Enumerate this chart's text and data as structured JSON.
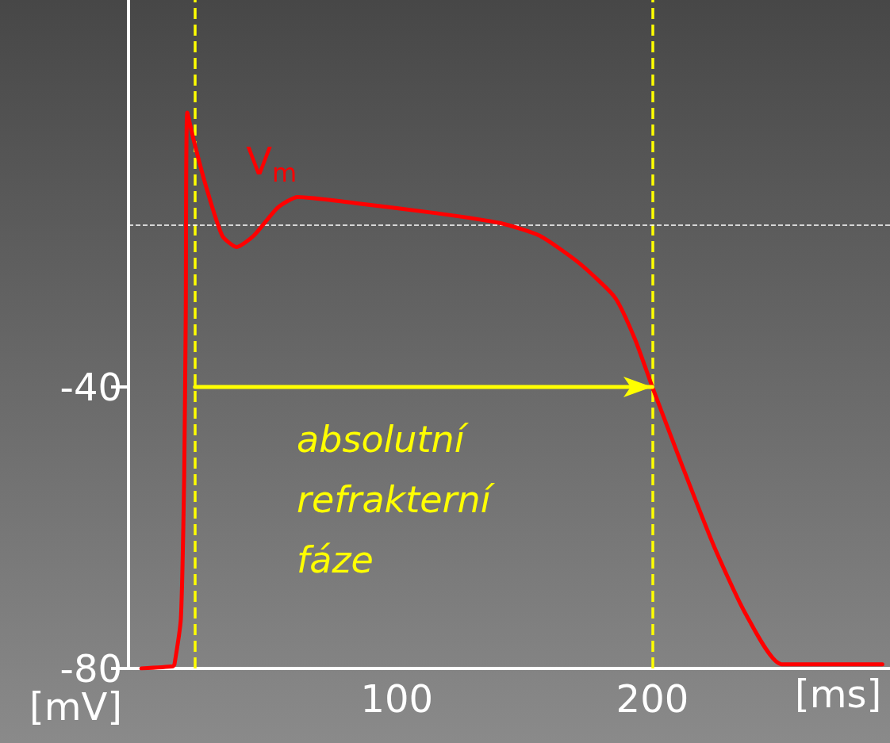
{
  "chart_data": {
    "type": "line",
    "xlabel": "[ms]",
    "ylabel": "[mV]",
    "xlim": [
      -5,
      293
    ],
    "ylim": [
      -80,
      15
    ],
    "xticks": [
      100,
      200
    ],
    "yticks": [
      -80,
      -40
    ],
    "series": [
      {
        "name": "V$_{m}$",
        "color": "#ff0000",
        "x": [
          0,
          12.4,
          13,
          15.5,
          16.8,
          17.4,
          18,
          20.5,
          25.5,
          31.7,
          37.3,
          44,
          53.4,
          61.2,
          84.5,
          115.5,
          140.4,
          155.9,
          171.4,
          185.4,
          193.2,
          200,
          211.8,
          224.2,
          236.6,
          250.6,
          290
        ],
        "values": [
          -80,
          -79.7,
          -79.4,
          -72.9,
          -52.5,
          -29.8,
          -1,
          -4.9,
          -11.7,
          -18.5,
          -20.1,
          -18.5,
          -14.5,
          -13,
          -13.9,
          -15.3,
          -16.7,
          -18.5,
          -22.4,
          -27.3,
          -33.2,
          -40,
          -51.3,
          -62.7,
          -72.3,
          -79.4,
          -79.4
        ]
      },
      {
        "color": "#ffff00",
        "x": [
          21,
          200
        ],
        "values": [
          -40,
          -40
        ]
      }
    ],
    "ref_lines": [
      {
        "axis": "x",
        "value": 21,
        "color": "#ffff00",
        "line_style": "dashed"
      },
      {
        "axis": "x",
        "value": 200,
        "color": "#ffff00",
        "line_style": "dashed"
      },
      {
        "axis": "y",
        "value": -17,
        "color": "#ffffff",
        "line_style": "dashed"
      }
    ],
    "annotations": [
      "absolutní refrakterní fáze"
    ],
    "grid": false,
    "legend": false,
    "marker": "none",
    "line_style": "solid"
  }
}
